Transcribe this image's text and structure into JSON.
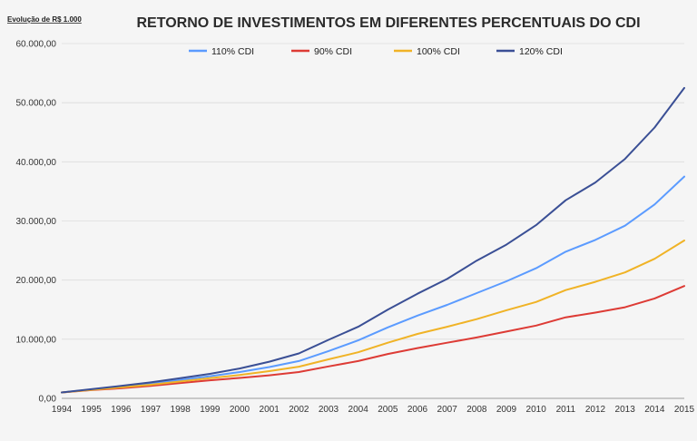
{
  "chart_data": {
    "type": "line",
    "title": "RETORNO DE INVESTIMENTOS EM DIFERENTES PERCENTUAIS DO CDI",
    "subtitle": "Evolução  de R$ 1.000",
    "x": [
      1994,
      1995,
      1996,
      1997,
      1998,
      1999,
      2000,
      2001,
      2002,
      2003,
      2004,
      2005,
      2006,
      2007,
      2008,
      2009,
      2010,
      2011,
      2012,
      2013,
      2014,
      2015
    ],
    "x_tick_labels": [
      "1994",
      "1995",
      "1996",
      "1997",
      "1998",
      "1999",
      "2000",
      "2001",
      "2002",
      "2003",
      "2004",
      "2005",
      "2006",
      "2007",
      "2008",
      "2009",
      "2010",
      "2011",
      "2012",
      "2013",
      "2014",
      "2015"
    ],
    "ylim": [
      0,
      60000
    ],
    "y_ticks": [
      0,
      10000,
      20000,
      30000,
      40000,
      50000,
      60000
    ],
    "y_tick_labels": [
      "0,00",
      "10.000,00",
      "20.000,00",
      "30.000,00",
      "40.000,00",
      "50.000,00",
      "60.000,00"
    ],
    "grid": true,
    "legend_position": "top",
    "series": [
      {
        "name": "110% CDI",
        "color": "#5b9bff",
        "values": [
          1000,
          1500,
          2000,
          2500,
          3100,
          3750,
          4450,
          5300,
          6300,
          8000,
          9800,
          12000,
          14000,
          15800,
          17800,
          19800,
          22000,
          24800,
          26800,
          29200,
          32800,
          37500
        ]
      },
      {
        "name": "90% CDI",
        "color": "#dd3b35",
        "values": [
          1000,
          1400,
          1700,
          2100,
          2600,
          3050,
          3450,
          3900,
          4450,
          5400,
          6300,
          7500,
          8500,
          9400,
          10300,
          11300,
          12300,
          13700,
          14500,
          15400,
          16900,
          19000
        ]
      },
      {
        "name": "100% CDI",
        "color": "#f0b326",
        "values": [
          1000,
          1450,
          1850,
          2300,
          2850,
          3400,
          3950,
          4600,
          5350,
          6600,
          7800,
          9400,
          10900,
          12100,
          13400,
          14900,
          16300,
          18300,
          19700,
          21300,
          23600,
          26700
        ]
      },
      {
        "name": "120% CDI",
        "color": "#3a4f95",
        "values": [
          1000,
          1550,
          2100,
          2700,
          3400,
          4150,
          5050,
          6200,
          7600,
          9900,
          12100,
          15000,
          17700,
          20200,
          23300,
          26000,
          29300,
          33500,
          36500,
          40500,
          45800,
          52500
        ]
      }
    ]
  }
}
